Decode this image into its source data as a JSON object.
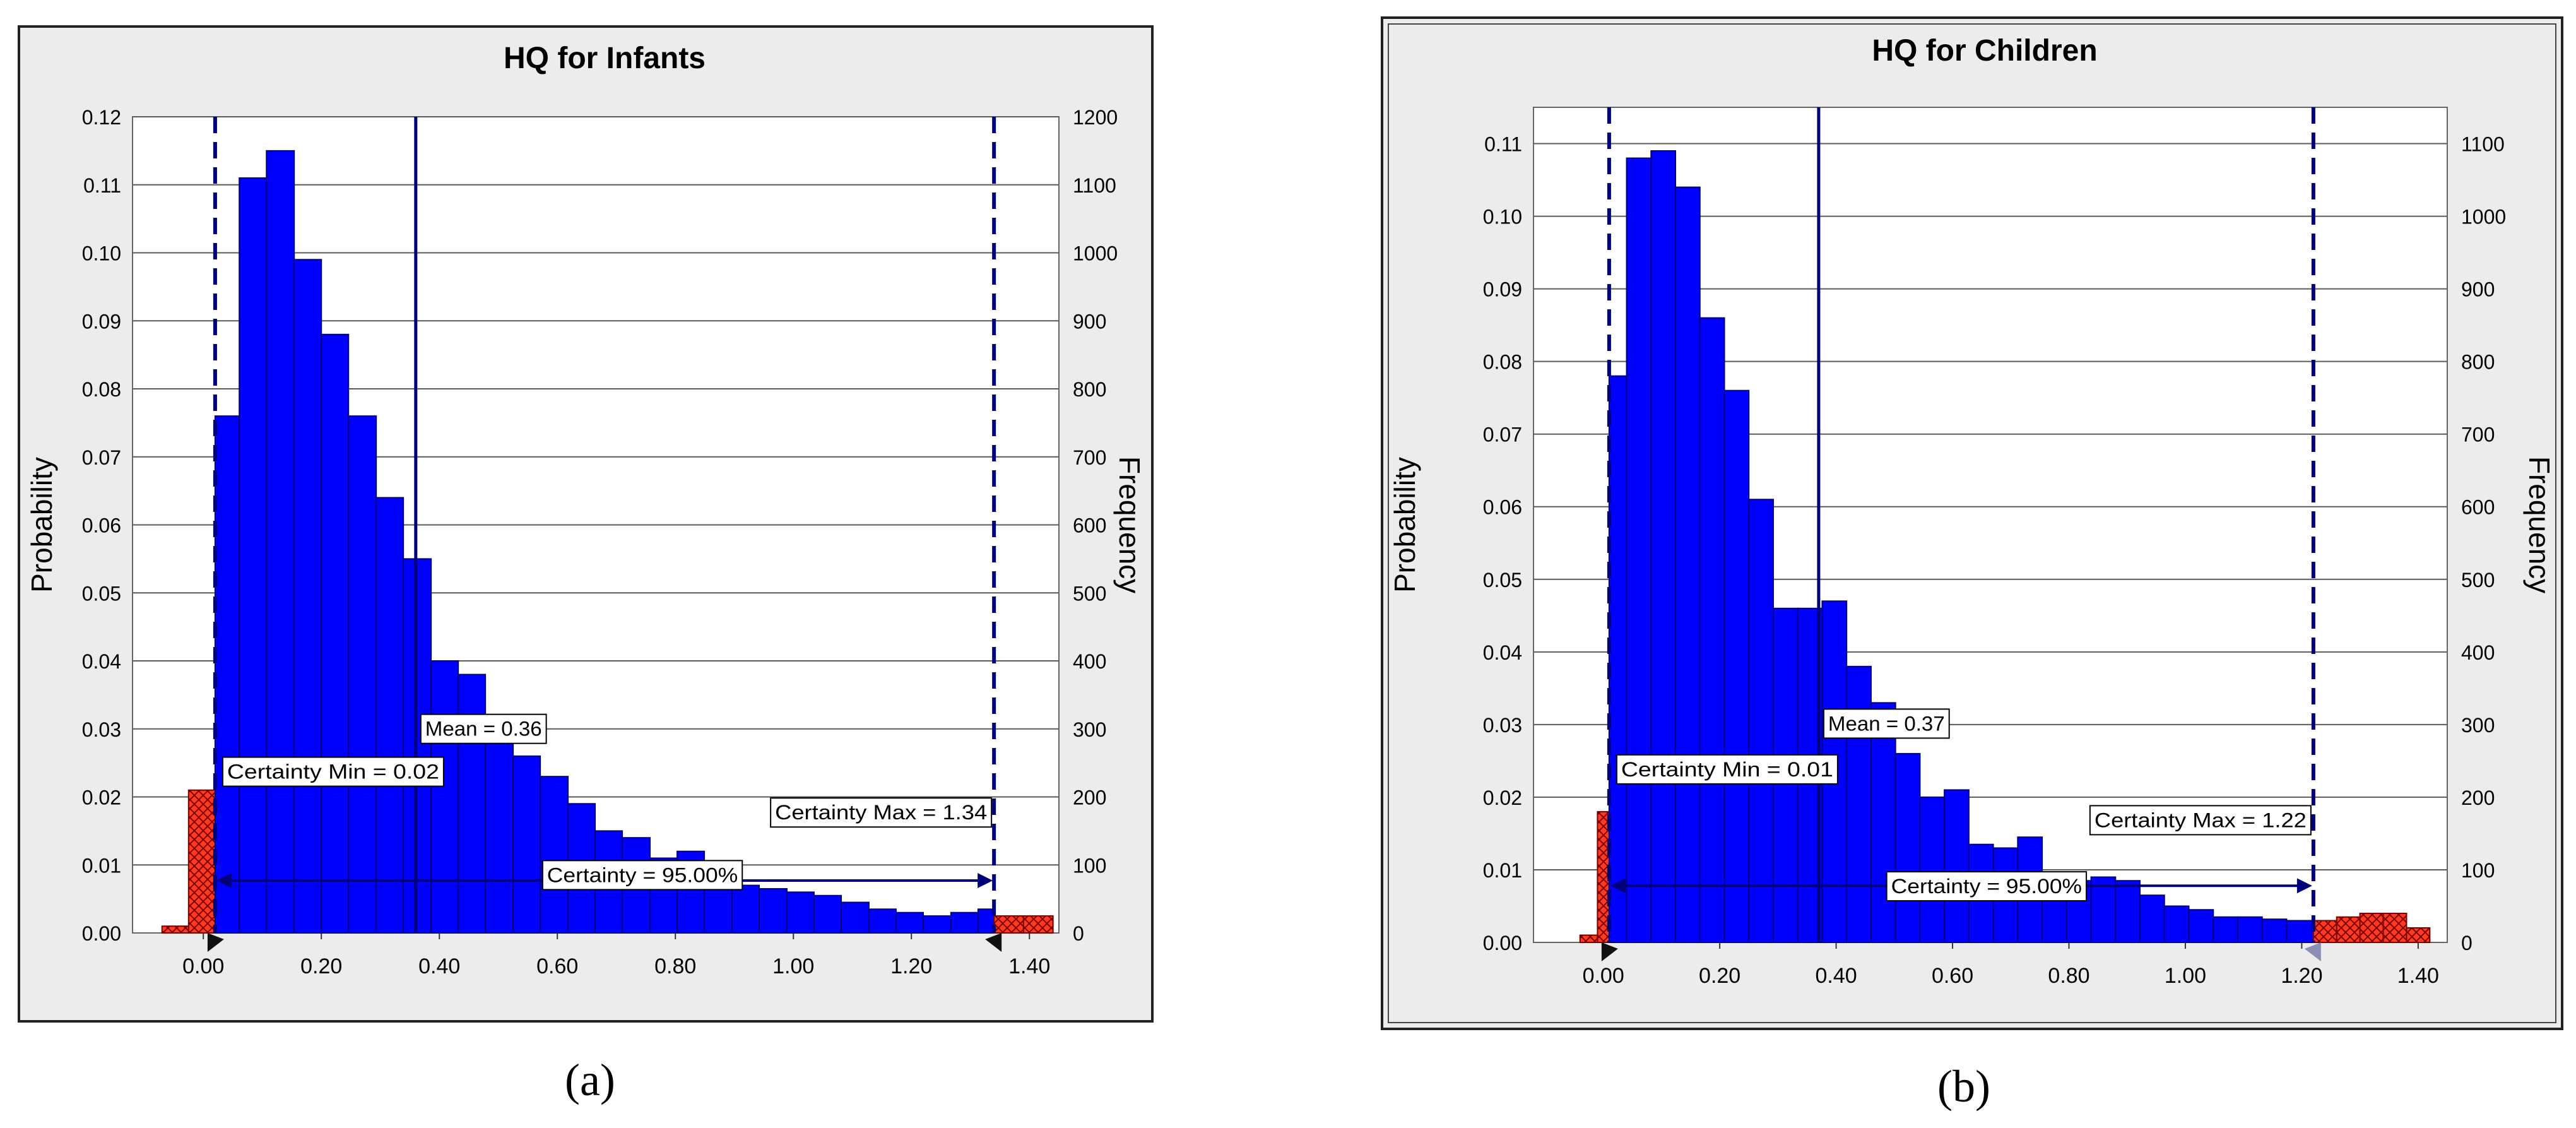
{
  "captions": {
    "a": "(a)",
    "b": "(b)"
  },
  "chart_data": [
    {
      "type": "bar",
      "title": "HQ for Infants",
      "ylabel": "Probability",
      "y2label": "Frequency",
      "xlim": [
        -0.12,
        1.45
      ],
      "ylim": [
        0,
        0.12
      ],
      "y2lim": [
        0,
        1200
      ],
      "x_ticks": [
        "0.00",
        "0.20",
        "0.40",
        "0.60",
        "0.80",
        "1.00",
        "1.20",
        "1.40"
      ],
      "x_tick_values": [
        0,
        0.2,
        0.4,
        0.6,
        0.8,
        1.0,
        1.2,
        1.4
      ],
      "y_ticks": [
        "0.00",
        "0.01",
        "0.02",
        "0.03",
        "0.04",
        "0.05",
        "0.06",
        "0.07",
        "0.08",
        "0.09",
        "0.10",
        "0.11",
        "0.12"
      ],
      "y2_ticks": [
        "0",
        "100",
        "200",
        "300",
        "400",
        "500",
        "600",
        "700",
        "800",
        "900",
        "1000",
        "1100",
        "1200"
      ],
      "grid": true,
      "bin_width": 0.0464,
      "bins": [
        {
          "x0": -0.07,
          "x1": -0.025,
          "p": 0.001,
          "tail": true
        },
        {
          "x0": -0.025,
          "x1": 0.02,
          "p": 0.021,
          "tail": true
        },
        {
          "x0": 0.02,
          "x1": 0.061,
          "p": 0.076,
          "tail": false
        },
        {
          "x0": 0.061,
          "x1": 0.107,
          "p": 0.111,
          "tail": false
        },
        {
          "x0": 0.107,
          "x1": 0.154,
          "p": 0.115,
          "tail": false
        },
        {
          "x0": 0.154,
          "x1": 0.2,
          "p": 0.099,
          "tail": false
        },
        {
          "x0": 0.2,
          "x1": 0.246,
          "p": 0.088,
          "tail": false
        },
        {
          "x0": 0.246,
          "x1": 0.293,
          "p": 0.076,
          "tail": false
        },
        {
          "x0": 0.293,
          "x1": 0.339,
          "p": 0.064,
          "tail": false
        },
        {
          "x0": 0.339,
          "x1": 0.386,
          "p": 0.055,
          "tail": false
        },
        {
          "x0": 0.386,
          "x1": 0.432,
          "p": 0.04,
          "tail": false
        },
        {
          "x0": 0.432,
          "x1": 0.478,
          "p": 0.038,
          "tail": false
        },
        {
          "x0": 0.478,
          "x1": 0.525,
          "p": 0.03,
          "tail": false
        },
        {
          "x0": 0.525,
          "x1": 0.571,
          "p": 0.026,
          "tail": false
        },
        {
          "x0": 0.571,
          "x1": 0.618,
          "p": 0.023,
          "tail": false
        },
        {
          "x0": 0.618,
          "x1": 0.664,
          "p": 0.019,
          "tail": false
        },
        {
          "x0": 0.664,
          "x1": 0.71,
          "p": 0.015,
          "tail": false
        },
        {
          "x0": 0.71,
          "x1": 0.757,
          "p": 0.014,
          "tail": false
        },
        {
          "x0": 0.757,
          "x1": 0.803,
          "p": 0.011,
          "tail": false
        },
        {
          "x0": 0.803,
          "x1": 0.849,
          "p": 0.012,
          "tail": false
        },
        {
          "x0": 0.849,
          "x1": 0.896,
          "p": 0.009,
          "tail": false
        },
        {
          "x0": 0.896,
          "x1": 0.942,
          "p": 0.007,
          "tail": false
        },
        {
          "x0": 0.942,
          "x1": 0.989,
          "p": 0.0065,
          "tail": false
        },
        {
          "x0": 0.989,
          "x1": 1.035,
          "p": 0.006,
          "tail": false
        },
        {
          "x0": 1.035,
          "x1": 1.081,
          "p": 0.0055,
          "tail": false
        },
        {
          "x0": 1.081,
          "x1": 1.128,
          "p": 0.0045,
          "tail": false
        },
        {
          "x0": 1.128,
          "x1": 1.174,
          "p": 0.0035,
          "tail": false
        },
        {
          "x0": 1.174,
          "x1": 1.22,
          "p": 0.003,
          "tail": false
        },
        {
          "x0": 1.22,
          "x1": 1.267,
          "p": 0.0025,
          "tail": false
        },
        {
          "x0": 1.267,
          "x1": 1.313,
          "p": 0.003,
          "tail": false
        },
        {
          "x0": 1.313,
          "x1": 1.34,
          "p": 0.0035,
          "tail": false
        },
        {
          "x0": 1.34,
          "x1": 1.39,
          "p": 0.0025,
          "tail": true
        },
        {
          "x0": 1.39,
          "x1": 1.44,
          "p": 0.0025,
          "tail": true
        }
      ],
      "colors": {
        "bar": "#0000ff",
        "tail": "#ff3a1e",
        "line": "#00007a",
        "grid": "#5a5a5a",
        "bg": "#ececec"
      },
      "markers": {
        "certainty_min": {
          "x": 0.02,
          "label": "Certainty Min = 0.02"
        },
        "mean": {
          "x": 0.36,
          "label": "Mean = 0.36"
        },
        "certainty_max": {
          "x": 1.34,
          "label": "Certainty Max = 1.34"
        },
        "certainty": {
          "label": "Certainty = 95.00%"
        }
      }
    },
    {
      "type": "bar",
      "title": "HQ for Children",
      "ylabel": "Probability",
      "y2label": "Frequency",
      "xlim": [
        -0.12,
        1.45
      ],
      "ylim": [
        0,
        0.115
      ],
      "y2lim": [
        0,
        1150
      ],
      "x_ticks": [
        "0.00",
        "0.20",
        "0.40",
        "0.60",
        "0.80",
        "1.00",
        "1.20",
        "1.40"
      ],
      "x_tick_values": [
        0,
        0.2,
        0.4,
        0.6,
        0.8,
        1.0,
        1.2,
        1.4
      ],
      "y_ticks": [
        "0.00",
        "0.01",
        "0.02",
        "0.03",
        "0.04",
        "0.05",
        "0.06",
        "0.07",
        "0.08",
        "0.09",
        "0.10",
        "0.11"
      ],
      "y2_ticks": [
        "0",
        "100",
        "200",
        "300",
        "400",
        "500",
        "600",
        "700",
        "800",
        "900",
        "1000",
        "1100"
      ],
      "grid": true,
      "bin_width": 0.042,
      "bins": [
        {
          "x0": -0.04,
          "x1": -0.01,
          "p": 0.001,
          "tail": true
        },
        {
          "x0": -0.01,
          "x1": 0.01,
          "p": 0.018,
          "tail": true
        },
        {
          "x0": 0.01,
          "x1": 0.04,
          "p": 0.078,
          "tail": false
        },
        {
          "x0": 0.04,
          "x1": 0.082,
          "p": 0.108,
          "tail": false
        },
        {
          "x0": 0.082,
          "x1": 0.124,
          "p": 0.109,
          "tail": false
        },
        {
          "x0": 0.124,
          "x1": 0.166,
          "p": 0.104,
          "tail": false
        },
        {
          "x0": 0.166,
          "x1": 0.208,
          "p": 0.086,
          "tail": false
        },
        {
          "x0": 0.208,
          "x1": 0.25,
          "p": 0.076,
          "tail": false
        },
        {
          "x0": 0.25,
          "x1": 0.292,
          "p": 0.061,
          "tail": false
        },
        {
          "x0": 0.292,
          "x1": 0.334,
          "p": 0.046,
          "tail": false
        },
        {
          "x0": 0.334,
          "x1": 0.376,
          "p": 0.046,
          "tail": false
        },
        {
          "x0": 0.376,
          "x1": 0.418,
          "p": 0.047,
          "tail": false
        },
        {
          "x0": 0.418,
          "x1": 0.46,
          "p": 0.038,
          "tail": false
        },
        {
          "x0": 0.46,
          "x1": 0.502,
          "p": 0.033,
          "tail": false
        },
        {
          "x0": 0.502,
          "x1": 0.544,
          "p": 0.026,
          "tail": false
        },
        {
          "x0": 0.544,
          "x1": 0.586,
          "p": 0.02,
          "tail": false
        },
        {
          "x0": 0.586,
          "x1": 0.628,
          "p": 0.021,
          "tail": false
        },
        {
          "x0": 0.628,
          "x1": 0.67,
          "p": 0.0135,
          "tail": false
        },
        {
          "x0": 0.67,
          "x1": 0.712,
          "p": 0.013,
          "tail": false
        },
        {
          "x0": 0.712,
          "x1": 0.754,
          "p": 0.0145,
          "tail": false
        },
        {
          "x0": 0.754,
          "x1": 0.796,
          "p": 0.008,
          "tail": false
        },
        {
          "x0": 0.796,
          "x1": 0.838,
          "p": 0.0085,
          "tail": false
        },
        {
          "x0": 0.838,
          "x1": 0.88,
          "p": 0.009,
          "tail": false
        },
        {
          "x0": 0.88,
          "x1": 0.922,
          "p": 0.0085,
          "tail": false
        },
        {
          "x0": 0.922,
          "x1": 0.964,
          "p": 0.0065,
          "tail": false
        },
        {
          "x0": 0.964,
          "x1": 1.006,
          "p": 0.005,
          "tail": false
        },
        {
          "x0": 1.006,
          "x1": 1.048,
          "p": 0.0045,
          "tail": false
        },
        {
          "x0": 1.048,
          "x1": 1.09,
          "p": 0.0035,
          "tail": false
        },
        {
          "x0": 1.09,
          "x1": 1.132,
          "p": 0.0035,
          "tail": false
        },
        {
          "x0": 1.132,
          "x1": 1.174,
          "p": 0.0032,
          "tail": false
        },
        {
          "x0": 1.174,
          "x1": 1.22,
          "p": 0.003,
          "tail": false
        },
        {
          "x0": 1.22,
          "x1": 1.26,
          "p": 0.003,
          "tail": true
        },
        {
          "x0": 1.26,
          "x1": 1.3,
          "p": 0.0035,
          "tail": true
        },
        {
          "x0": 1.3,
          "x1": 1.34,
          "p": 0.004,
          "tail": true
        },
        {
          "x0": 1.34,
          "x1": 1.38,
          "p": 0.004,
          "tail": true
        },
        {
          "x0": 1.38,
          "x1": 1.42,
          "p": 0.002,
          "tail": true
        }
      ],
      "colors": {
        "bar": "#0000ff",
        "tail": "#ff3a1e",
        "line": "#00007a",
        "grid": "#5a5a5a",
        "bg": "#ececec"
      },
      "markers": {
        "certainty_min": {
          "x": 0.01,
          "label": "Certainty Min = 0.01"
        },
        "mean": {
          "x": 0.37,
          "label": "Mean = 0.37"
        },
        "certainty_max": {
          "x": 1.22,
          "label": "Certainty Max = 1.22"
        },
        "certainty": {
          "label": "Certainty = 95.00%"
        }
      }
    }
  ]
}
